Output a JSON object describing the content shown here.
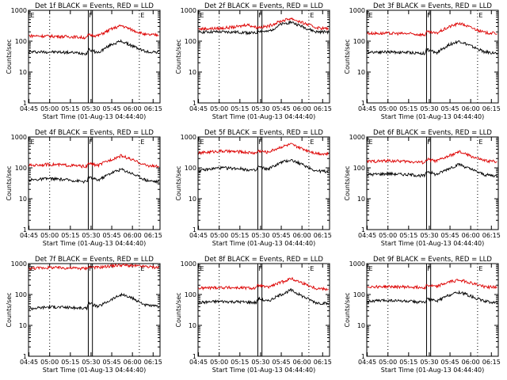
{
  "figure": {
    "title_template": "Det {det} BLACK = Events, RED = LLD",
    "xlabel": "Start Time (01-Aug-13 04:44:40)",
    "ylabel": "Counts/sec",
    "x_ticks": [
      "04:45",
      "05:00",
      "05:15",
      "05:30",
      "05:45",
      "06:00",
      "06:15"
    ],
    "y_ticks": [
      "1",
      "10",
      "100",
      "1000"
    ],
    "markers": {
      "E": "E",
      "F": "F"
    },
    "colors": {
      "events": "#000000",
      "lld": "#dd0000"
    }
  },
  "chart_data": [
    {
      "type": "line",
      "det": "1f",
      "title": "Det 1f BLACK = Events, RED = LLD",
      "ylim": [
        1,
        1000
      ],
      "yscale": "log",
      "series": [
        {
          "name": "BLACK = Events",
          "x": [
            "04:45",
            "05:00",
            "05:15",
            "05:27",
            "05:28",
            "05:35",
            "05:45",
            "05:52",
            "06:00",
            "06:10",
            "06:19"
          ],
          "y": [
            45,
            45,
            43,
            40,
            55,
            42,
            80,
            100,
            70,
            45,
            45
          ]
        },
        {
          "name": "RED = LLD",
          "x": [
            "04:45",
            "05:00",
            "05:15",
            "05:27",
            "05:28",
            "05:35",
            "05:45",
            "05:52",
            "06:00",
            "06:10",
            "06:19"
          ],
          "y": [
            150,
            145,
            140,
            130,
            160,
            150,
            250,
            320,
            230,
            160,
            160
          ]
        }
      ]
    },
    {
      "type": "line",
      "det": "2f",
      "title": "Det 2f BLACK = Events, RED = LLD",
      "ylim": [
        1,
        1000
      ],
      "yscale": "log",
      "series": [
        {
          "name": "BLACK = Events",
          "x": [
            "04:45",
            "05:00",
            "05:15",
            "05:27",
            "05:28",
            "05:35",
            "05:45",
            "05:52",
            "06:00",
            "06:10",
            "06:19"
          ],
          "y": [
            200,
            200,
            195,
            180,
            220,
            200,
            350,
            420,
            300,
            200,
            200
          ]
        },
        {
          "name": "RED = LLD",
          "x": [
            "04:45",
            "05:00",
            "05:15",
            "05:20",
            "05:27",
            "05:35",
            "05:45",
            "05:52",
            "06:00",
            "06:10",
            "06:19"
          ],
          "y": [
            250,
            260,
            300,
            350,
            280,
            300,
            450,
            550,
            400,
            280,
            250
          ]
        }
      ]
    },
    {
      "type": "line",
      "det": "3f",
      "title": "Det 3f BLACK = Events, RED = LLD",
      "ylim": [
        1,
        1000
      ],
      "yscale": "log",
      "series": [
        {
          "name": "BLACK = Events",
          "x": [
            "04:45",
            "05:00",
            "05:15",
            "05:27",
            "05:28",
            "05:35",
            "05:45",
            "05:52",
            "06:00",
            "06:10",
            "06:19"
          ],
          "y": [
            45,
            45,
            43,
            40,
            55,
            42,
            80,
            100,
            70,
            45,
            40
          ]
        },
        {
          "name": "RED = LLD",
          "x": [
            "04:45",
            "05:00",
            "05:15",
            "05:27",
            "05:28",
            "05:35",
            "05:45",
            "05:52",
            "06:00",
            "06:10",
            "06:19"
          ],
          "y": [
            180,
            180,
            175,
            160,
            200,
            180,
            300,
            380,
            280,
            190,
            180
          ]
        }
      ]
    },
    {
      "type": "line",
      "det": "4f",
      "title": "Det 4f BLACK = Events, RED = LLD",
      "ylim": [
        1,
        1000
      ],
      "yscale": "log",
      "series": [
        {
          "name": "BLACK = Events",
          "x": [
            "04:45",
            "05:00",
            "05:15",
            "05:27",
            "05:28",
            "05:35",
            "05:45",
            "05:52",
            "06:00",
            "06:10",
            "06:19"
          ],
          "y": [
            40,
            45,
            40,
            35,
            50,
            40,
            70,
            90,
            65,
            40,
            35
          ]
        },
        {
          "name": "RED = LLD",
          "x": [
            "04:45",
            "05:00",
            "05:15",
            "05:27",
            "05:28",
            "05:35",
            "05:45",
            "05:52",
            "06:00",
            "06:10",
            "06:19"
          ],
          "y": [
            120,
            130,
            120,
            110,
            140,
            120,
            190,
            250,
            180,
            120,
            110
          ]
        }
      ]
    },
    {
      "type": "line",
      "det": "5f",
      "title": "Det 5f BLACK = Events, RED = LLD",
      "ylim": [
        1,
        1000
      ],
      "yscale": "log",
      "series": [
        {
          "name": "BLACK = Events",
          "x": [
            "04:45",
            "05:00",
            "05:15",
            "05:27",
            "05:28",
            "05:35",
            "05:45",
            "05:52",
            "06:00",
            "06:10",
            "06:19"
          ],
          "y": [
            80,
            100,
            95,
            80,
            110,
            90,
            150,
            180,
            130,
            80,
            75
          ]
        },
        {
          "name": "RED = LLD",
          "x": [
            "04:45",
            "05:00",
            "05:15",
            "05:27",
            "05:28",
            "05:35",
            "05:45",
            "05:52",
            "06:00",
            "06:10",
            "06:19"
          ],
          "y": [
            300,
            350,
            330,
            300,
            360,
            320,
            480,
            580,
            420,
            300,
            280
          ]
        }
      ]
    },
    {
      "type": "line",
      "det": "6f",
      "title": "Det 6f BLACK = Events, RED = LLD",
      "ylim": [
        1,
        1000
      ],
      "yscale": "log",
      "series": [
        {
          "name": "BLACK = Events",
          "x": [
            "04:45",
            "05:00",
            "05:15",
            "05:27",
            "05:28",
            "05:35",
            "05:45",
            "05:52",
            "06:00",
            "06:10",
            "06:19"
          ],
          "y": [
            60,
            65,
            60,
            55,
            80,
            60,
            100,
            130,
            90,
            60,
            55
          ]
        },
        {
          "name": "RED = LLD",
          "x": [
            "04:45",
            "05:00",
            "05:15",
            "05:27",
            "05:28",
            "05:35",
            "05:45",
            "05:52",
            "06:00",
            "06:10",
            "06:19"
          ],
          "y": [
            160,
            170,
            160,
            150,
            190,
            165,
            250,
            330,
            240,
            170,
            160
          ]
        }
      ]
    },
    {
      "type": "line",
      "det": "7f",
      "title": "Det 7f BLACK = Events, RED = LLD",
      "ylim": [
        1,
        1000
      ],
      "yscale": "log",
      "series": [
        {
          "name": "BLACK = Events",
          "x": [
            "04:45",
            "05:00",
            "05:15",
            "05:27",
            "05:28",
            "05:35",
            "05:45",
            "05:52",
            "06:00",
            "06:10",
            "06:19"
          ],
          "y": [
            35,
            40,
            38,
            35,
            55,
            40,
            70,
            100,
            75,
            45,
            40
          ]
        },
        {
          "name": "RED = LLD",
          "x": [
            "04:45",
            "05:00",
            "05:15",
            "05:27",
            "05:28",
            "05:35",
            "05:45",
            "05:52",
            "06:00",
            "06:10",
            "06:19"
          ],
          "y": [
            700,
            750,
            720,
            700,
            800,
            750,
            850,
            900,
            850,
            800,
            750
          ]
        }
      ]
    },
    {
      "type": "line",
      "det": "8f",
      "title": "Det 8f BLACK = Events, RED = LLD",
      "ylim": [
        1,
        1000
      ],
      "yscale": "log",
      "series": [
        {
          "name": "BLACK = Events",
          "x": [
            "04:45",
            "05:00",
            "05:15",
            "05:27",
            "05:28",
            "05:35",
            "05:45",
            "05:52",
            "06:00",
            "06:10",
            "06:19"
          ],
          "y": [
            55,
            60,
            58,
            55,
            75,
            60,
            100,
            140,
            90,
            55,
            50
          ]
        },
        {
          "name": "RED = LLD",
          "x": [
            "04:45",
            "05:00",
            "05:15",
            "05:27",
            "05:28",
            "05:35",
            "05:45",
            "05:52",
            "06:00",
            "06:10",
            "06:19"
          ],
          "y": [
            160,
            170,
            165,
            160,
            200,
            170,
            250,
            330,
            240,
            160,
            150
          ]
        }
      ]
    },
    {
      "type": "line",
      "det": "9f",
      "title": "Det 9f BLACK = Events, RED = LLD",
      "ylim": [
        1,
        1000
      ],
      "yscale": "log",
      "series": [
        {
          "name": "BLACK = Events",
          "x": [
            "04:45",
            "05:00",
            "05:15",
            "05:27",
            "05:28",
            "05:35",
            "05:45",
            "05:52",
            "06:00",
            "06:10",
            "06:19"
          ],
          "y": [
            60,
            65,
            60,
            55,
            75,
            60,
            100,
            120,
            90,
            60,
            55
          ]
        },
        {
          "name": "RED = LLD",
          "x": [
            "04:45",
            "05:00",
            "05:15",
            "05:27",
            "05:28",
            "05:35",
            "05:45",
            "05:52",
            "06:00",
            "06:10",
            "06:19"
          ],
          "y": [
            180,
            180,
            175,
            170,
            200,
            180,
            260,
            300,
            240,
            180,
            170
          ]
        }
      ]
    }
  ]
}
